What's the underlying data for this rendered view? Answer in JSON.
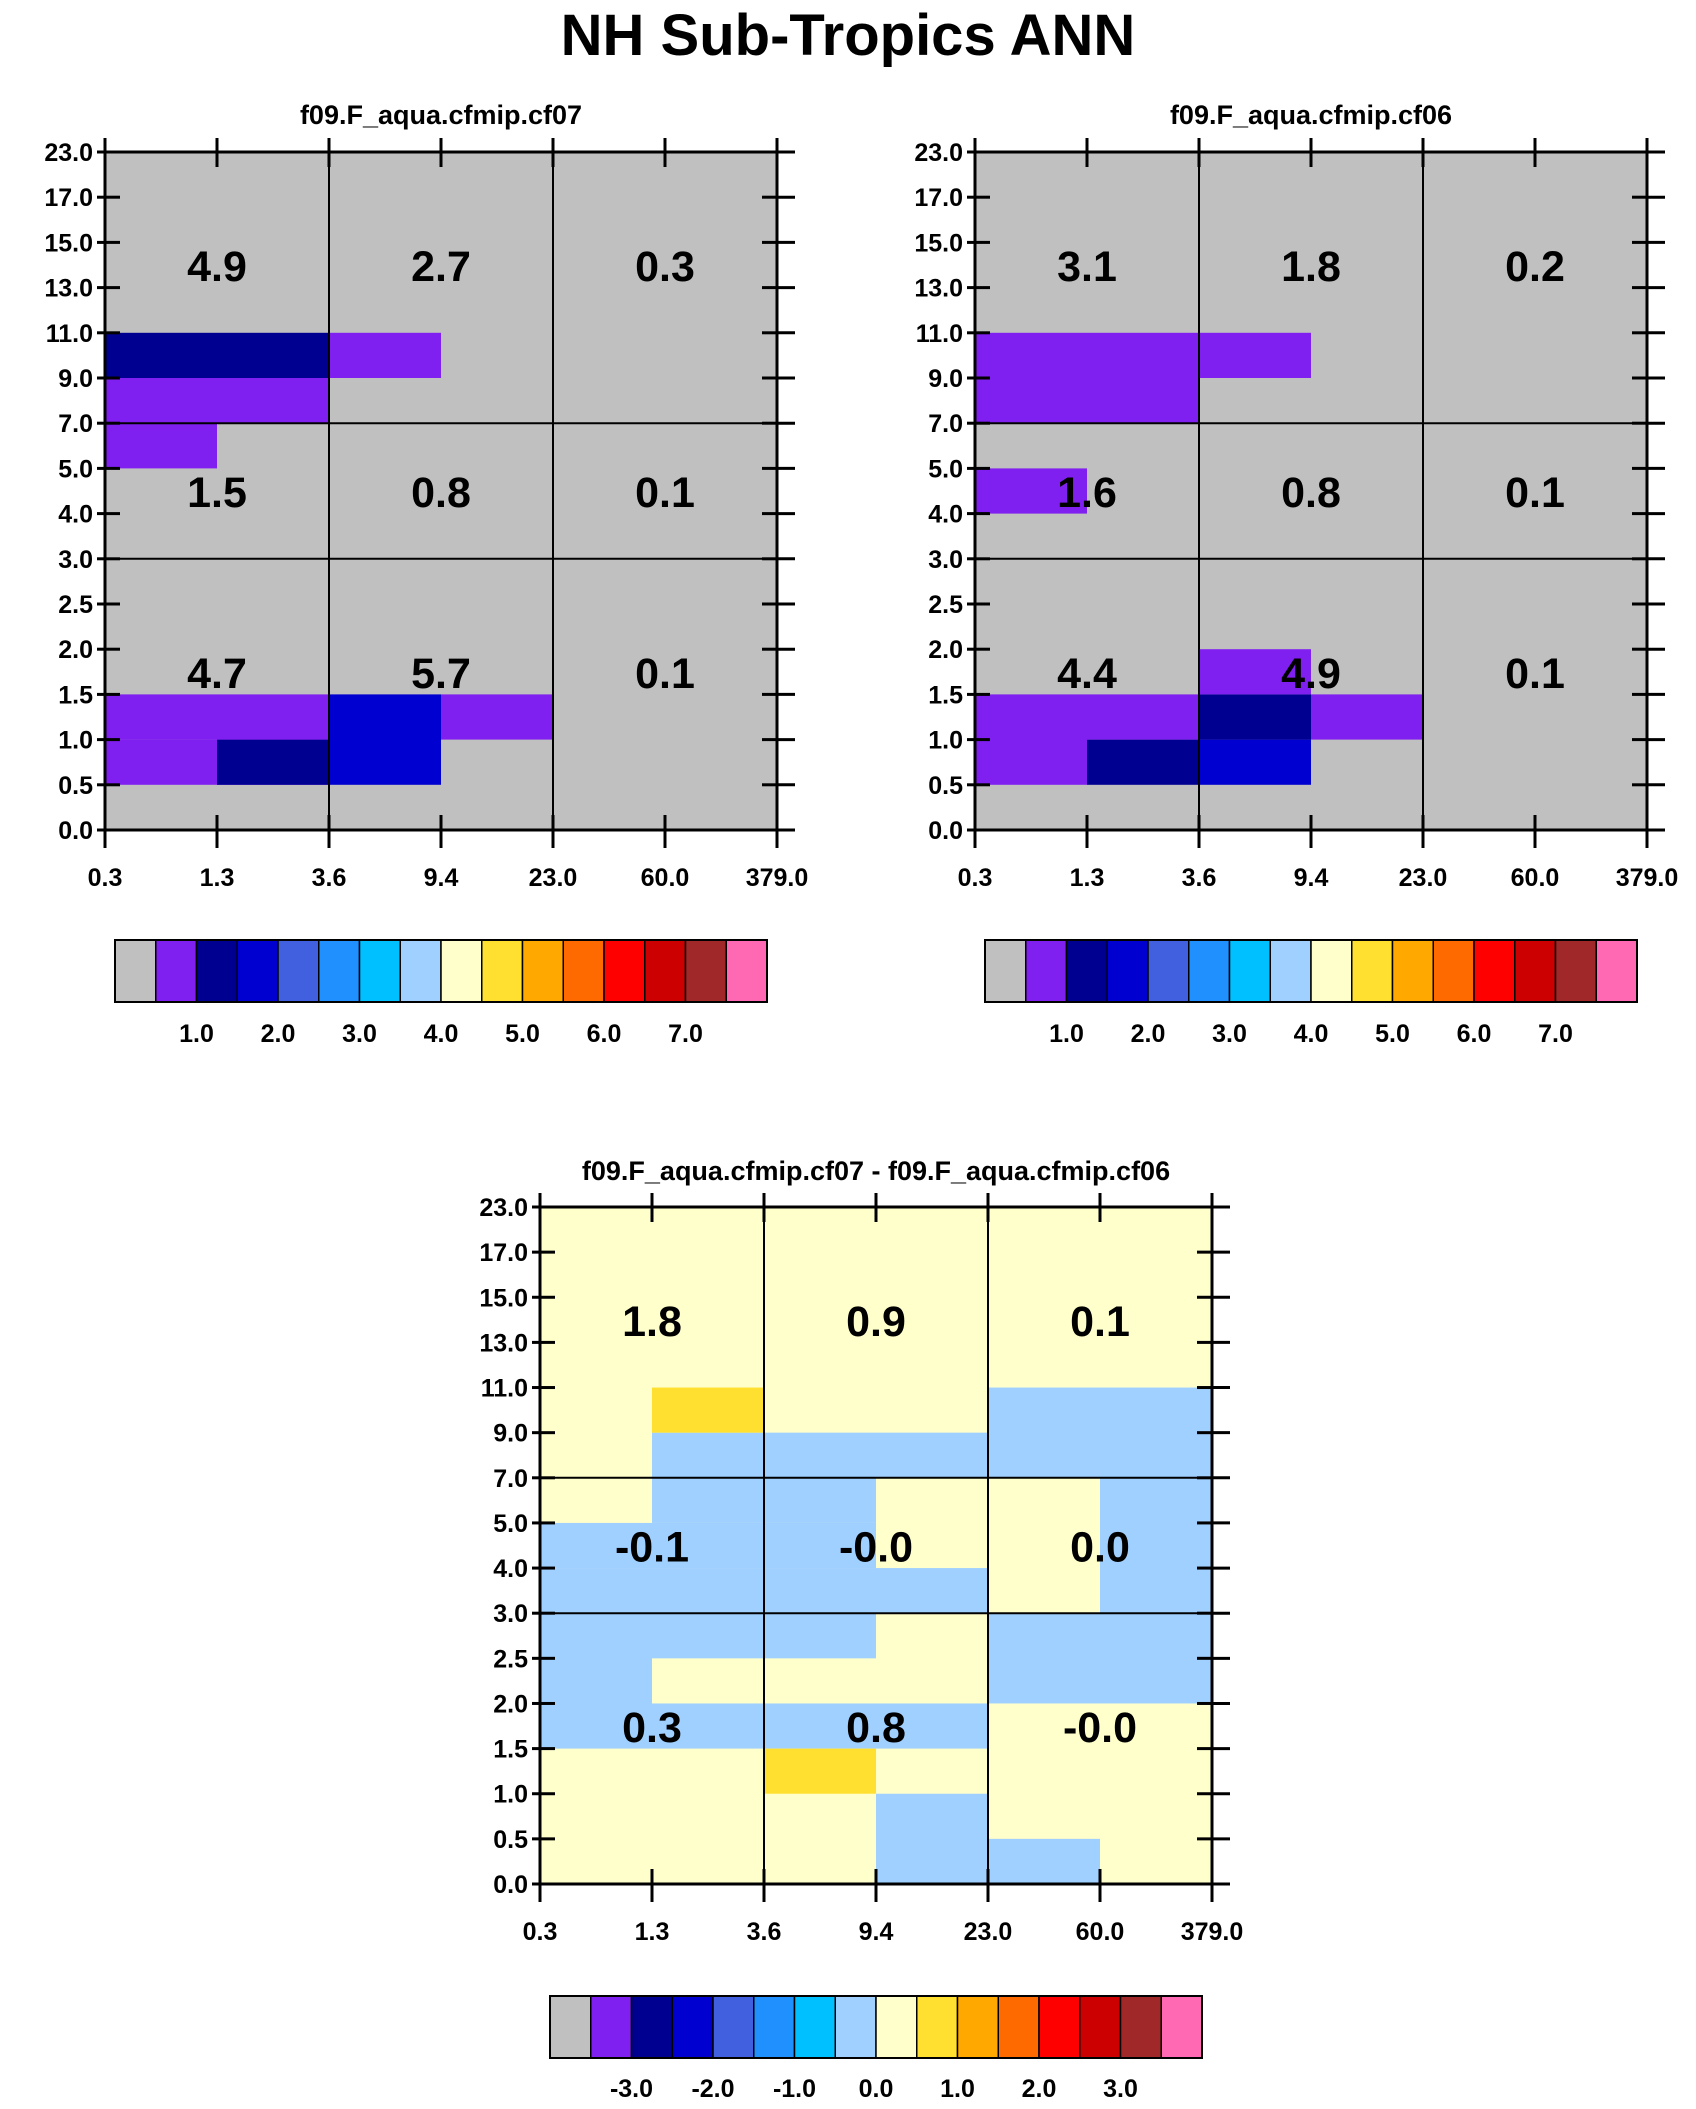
{
  "page": {
    "title": "NH Sub-Tropics ANN"
  },
  "colors": {
    "grey": "#c0c0c0",
    "purple": "#8020f0",
    "navy": "#000090",
    "blue": "#0000d0",
    "royal": "#4060e0",
    "dodger": "#2090ff",
    "deepsky": "#00c0ff",
    "lightblue": "#a0d0ff",
    "lightyellow": "#ffffcc",
    "yellow": "#ffe030",
    "orange": "#ffa800",
    "darkorange": "#ff6a00",
    "red": "#ff0000",
    "darkred": "#cc0000",
    "brown": "#a02828",
    "pink": "#ff69b4"
  },
  "chart_data": [
    {
      "type": "heatmap",
      "title": "f09.F_aqua.cfmip.cf07",
      "x_edges": [
        "0.3",
        "1.3",
        "3.6",
        "9.4",
        "23.0",
        "60.0",
        "379.0"
      ],
      "y_edges": [
        "0.0",
        "0.5",
        "1.0",
        "1.5",
        "2.0",
        "2.5",
        "3.0",
        "4.0",
        "5.0",
        "7.0",
        "9.0",
        "11.0",
        "13.0",
        "15.0",
        "17.0",
        "23.0"
      ],
      "cells": [
        {
          "x": [
            0,
            2
          ],
          "y": [
            1,
            2
          ],
          "color": "purple"
        },
        {
          "x": [
            0,
            1
          ],
          "y": [
            2,
            3
          ],
          "color": "purple"
        },
        {
          "x": [
            1,
            2
          ],
          "y": [
            1,
            2
          ],
          "color": "navy"
        },
        {
          "x": [
            2,
            3
          ],
          "y": [
            1,
            3
          ],
          "color": "blue"
        },
        {
          "x": [
            1,
            2
          ],
          "y": [
            2,
            3
          ],
          "color": "purple"
        },
        {
          "x": [
            3,
            4
          ],
          "y": [
            2,
            3
          ],
          "color": "purple"
        },
        {
          "x": [
            0,
            1
          ],
          "y": [
            8,
            9
          ],
          "color": "purple"
        },
        {
          "x": [
            0,
            2
          ],
          "y": [
            9,
            10
          ],
          "color": "purple"
        },
        {
          "x": [
            0,
            2
          ],
          "y": [
            10,
            11
          ],
          "color": "navy"
        },
        {
          "x": [
            2,
            3
          ],
          "y": [
            10,
            11
          ],
          "color": "purple"
        }
      ],
      "totals": [
        {
          "row": "high",
          "col": 0,
          "value": "4.9"
        },
        {
          "row": "high",
          "col": 1,
          "value": "2.7"
        },
        {
          "row": "high",
          "col": 2,
          "value": "0.3"
        },
        {
          "row": "mid",
          "col": 0,
          "value": "1.5"
        },
        {
          "row": "mid",
          "col": 1,
          "value": "0.8"
        },
        {
          "row": "mid",
          "col": 2,
          "value": "0.1"
        },
        {
          "row": "low",
          "col": 0,
          "value": "4.7"
        },
        {
          "row": "low",
          "col": 1,
          "value": "5.7"
        },
        {
          "row": "low",
          "col": 2,
          "value": "0.1"
        }
      ],
      "colorbar": {
        "colors": [
          "grey",
          "purple",
          "navy",
          "blue",
          "royal",
          "dodger",
          "deepsky",
          "lightblue",
          "lightyellow",
          "yellow",
          "orange",
          "darkorange",
          "red",
          "darkred",
          "brown",
          "pink"
        ],
        "labels": [
          {
            "after": 2,
            "text": "1.0"
          },
          {
            "after": 4,
            "text": "2.0"
          },
          {
            "after": 6,
            "text": "3.0"
          },
          {
            "after": 8,
            "text": "4.0"
          },
          {
            "after": 10,
            "text": "5.0"
          },
          {
            "after": 12,
            "text": "6.0"
          },
          {
            "after": 14,
            "text": "7.0"
          }
        ]
      }
    },
    {
      "type": "heatmap",
      "title": "f09.F_aqua.cfmip.cf06",
      "x_edges": [
        "0.3",
        "1.3",
        "3.6",
        "9.4",
        "23.0",
        "60.0",
        "379.0"
      ],
      "y_edges": [
        "0.0",
        "0.5",
        "1.0",
        "1.5",
        "2.0",
        "2.5",
        "3.0",
        "4.0",
        "5.0",
        "7.0",
        "9.0",
        "11.0",
        "13.0",
        "15.0",
        "17.0",
        "23.0"
      ],
      "cells": [
        {
          "x": [
            0,
            1
          ],
          "y": [
            1,
            3
          ],
          "color": "purple"
        },
        {
          "x": [
            1,
            2
          ],
          "y": [
            1,
            2
          ],
          "color": "navy"
        },
        {
          "x": [
            1,
            2
          ],
          "y": [
            2,
            3
          ],
          "color": "purple"
        },
        {
          "x": [
            2,
            3
          ],
          "y": [
            1,
            2
          ],
          "color": "blue"
        },
        {
          "x": [
            2,
            3
          ],
          "y": [
            2,
            3
          ],
          "color": "navy"
        },
        {
          "x": [
            2,
            3
          ],
          "y": [
            3,
            4
          ],
          "color": "purple"
        },
        {
          "x": [
            3,
            4
          ],
          "y": [
            2,
            3
          ],
          "color": "purple"
        },
        {
          "x": [
            0,
            1
          ],
          "y": [
            7,
            8
          ],
          "color": "purple"
        },
        {
          "x": [
            0,
            2
          ],
          "y": [
            9,
            11
          ],
          "color": "purple"
        },
        {
          "x": [
            2,
            3
          ],
          "y": [
            10,
            11
          ],
          "color": "purple"
        }
      ],
      "totals": [
        {
          "row": "high",
          "col": 0,
          "value": "3.1"
        },
        {
          "row": "high",
          "col": 1,
          "value": "1.8"
        },
        {
          "row": "high",
          "col": 2,
          "value": "0.2"
        },
        {
          "row": "mid",
          "col": 0,
          "value": "1.6"
        },
        {
          "row": "mid",
          "col": 1,
          "value": "0.8"
        },
        {
          "row": "mid",
          "col": 2,
          "value": "0.1"
        },
        {
          "row": "low",
          "col": 0,
          "value": "4.4"
        },
        {
          "row": "low",
          "col": 1,
          "value": "4.9"
        },
        {
          "row": "low",
          "col": 2,
          "value": "0.1"
        }
      ],
      "colorbar": {
        "colors": [
          "grey",
          "purple",
          "navy",
          "blue",
          "royal",
          "dodger",
          "deepsky",
          "lightblue",
          "lightyellow",
          "yellow",
          "orange",
          "darkorange",
          "red",
          "darkred",
          "brown",
          "pink"
        ],
        "labels": [
          {
            "after": 2,
            "text": "1.0"
          },
          {
            "after": 4,
            "text": "2.0"
          },
          {
            "after": 6,
            "text": "3.0"
          },
          {
            "after": 8,
            "text": "4.0"
          },
          {
            "after": 10,
            "text": "5.0"
          },
          {
            "after": 12,
            "text": "6.0"
          },
          {
            "after": 14,
            "text": "7.0"
          }
        ]
      }
    },
    {
      "type": "heatmap",
      "title": "f09.F_aqua.cfmip.cf07 - f09.F_aqua.cfmip.cf06",
      "x_edges": [
        "0.3",
        "1.3",
        "3.6",
        "9.4",
        "23.0",
        "60.0",
        "379.0"
      ],
      "y_edges": [
        "0.0",
        "0.5",
        "1.0",
        "1.5",
        "2.0",
        "2.5",
        "3.0",
        "4.0",
        "5.0",
        "7.0",
        "9.0",
        "11.0",
        "13.0",
        "15.0",
        "17.0",
        "23.0"
      ],
      "background": "lightyellow",
      "cells": [
        {
          "x": [
            0,
            2
          ],
          "y": [
            3,
            6
          ],
          "color": "lightblue"
        },
        {
          "x": [
            1,
            2
          ],
          "y": [
            4,
            5
          ],
          "color": "lightyellow"
        },
        {
          "x": [
            2,
            4
          ],
          "y": [
            3,
            4
          ],
          "color": "lightblue"
        },
        {
          "x": [
            2,
            3
          ],
          "y": [
            5,
            6
          ],
          "color": "lightblue"
        },
        {
          "x": [
            2,
            3
          ],
          "y": [
            2,
            3
          ],
          "color": "yellow"
        },
        {
          "x": [
            3,
            4
          ],
          "y": [
            0,
            2
          ],
          "color": "lightblue"
        },
        {
          "x": [
            4,
            5
          ],
          "y": [
            0,
            1
          ],
          "color": "lightblue"
        },
        {
          "x": [
            4,
            6
          ],
          "y": [
            4,
            6
          ],
          "color": "lightblue"
        },
        {
          "x": [
            0,
            4
          ],
          "y": [
            6,
            7
          ],
          "color": "lightblue"
        },
        {
          "x": [
            0,
            3
          ],
          "y": [
            7,
            8
          ],
          "color": "lightblue"
        },
        {
          "x": [
            1,
            3
          ],
          "y": [
            8,
            9
          ],
          "color": "lightblue"
        },
        {
          "x": [
            5,
            6
          ],
          "y": [
            6,
            9
          ],
          "color": "lightblue"
        },
        {
          "x": [
            1,
            4
          ],
          "y": [
            9,
            10
          ],
          "color": "lightblue"
        },
        {
          "x": [
            4,
            6
          ],
          "y": [
            9,
            11
          ],
          "color": "lightblue"
        },
        {
          "x": [
            1,
            2
          ],
          "y": [
            10,
            11
          ],
          "color": "yellow"
        }
      ],
      "totals": [
        {
          "row": "high",
          "col": 0,
          "value": "1.8"
        },
        {
          "row": "high",
          "col": 1,
          "value": "0.9"
        },
        {
          "row": "high",
          "col": 2,
          "value": "0.1"
        },
        {
          "row": "mid",
          "col": 0,
          "value": "-0.1"
        },
        {
          "row": "mid",
          "col": 1,
          "value": "-0.0"
        },
        {
          "row": "mid",
          "col": 2,
          "value": "0.0"
        },
        {
          "row": "low",
          "col": 0,
          "value": "0.3"
        },
        {
          "row": "low",
          "col": 1,
          "value": "0.8"
        },
        {
          "row": "low",
          "col": 2,
          "value": "-0.0"
        }
      ],
      "colorbar": {
        "colors": [
          "grey",
          "purple",
          "navy",
          "blue",
          "royal",
          "dodger",
          "deepsky",
          "lightblue",
          "lightyellow",
          "yellow",
          "orange",
          "darkorange",
          "red",
          "darkred",
          "brown",
          "pink"
        ],
        "labels": [
          {
            "after": 2,
            "text": "-3.0"
          },
          {
            "after": 4,
            "text": "-2.0"
          },
          {
            "after": 6,
            "text": "-1.0"
          },
          {
            "after": 8,
            "text": "0.0"
          },
          {
            "after": 10,
            "text": "1.0"
          },
          {
            "after": 12,
            "text": "2.0"
          },
          {
            "after": 14,
            "text": "3.0"
          }
        ]
      }
    }
  ]
}
